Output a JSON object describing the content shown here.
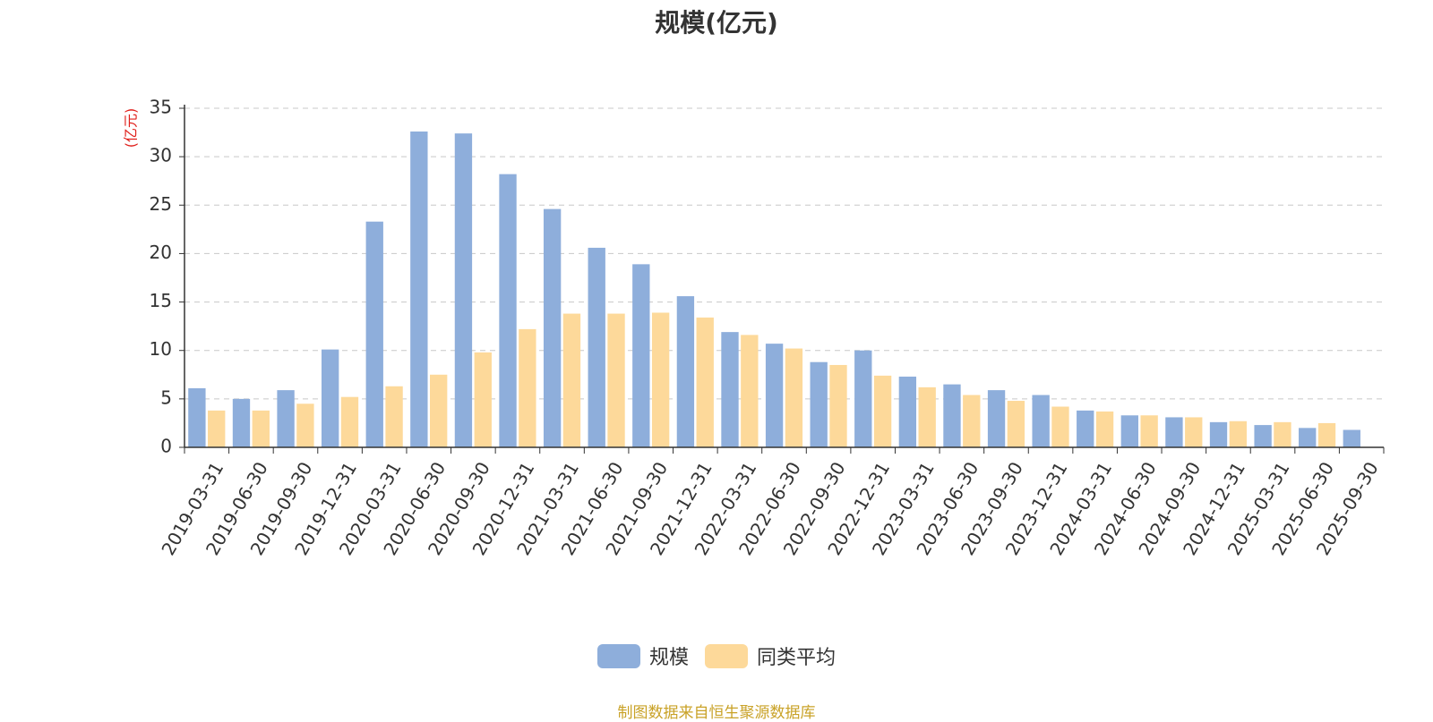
{
  "colors": {
    "series_1": "#8eaedb",
    "series_2": "#fdd99a",
    "y_unit_label": "#e0201b",
    "source_note": "#c9a227"
  },
  "source_note": "制图数据来自恒生聚源数据库",
  "chart_data": {
    "type": "bar",
    "title": "规模(亿元)",
    "ylabel": "(亿元)",
    "xlabel": "",
    "ylim": [
      0,
      35
    ],
    "yticks": [
      0,
      5,
      10,
      15,
      20,
      25,
      30,
      35
    ],
    "grid": true,
    "legend_position": "bottom-center",
    "categories": [
      "2019-03-31",
      "2019-06-30",
      "2019-09-30",
      "2019-12-31",
      "2020-03-31",
      "2020-06-30",
      "2020-09-30",
      "2020-12-31",
      "2021-03-31",
      "2021-06-30",
      "2021-09-30",
      "2021-12-31",
      "2022-03-31",
      "2022-06-30",
      "2022-09-30",
      "2022-12-31",
      "2023-03-31",
      "2023-06-30",
      "2023-09-30",
      "2023-12-31",
      "2024-03-31",
      "2024-06-30",
      "2024-09-30",
      "2024-12-31",
      "2025-03-31",
      "2025-06-30",
      "2025-09-30"
    ],
    "series": [
      {
        "name": "规模",
        "values": [
          6.1,
          5.0,
          5.9,
          10.1,
          23.3,
          32.6,
          32.4,
          28.2,
          24.6,
          20.6,
          18.9,
          15.6,
          11.9,
          10.7,
          8.8,
          10.0,
          7.3,
          6.5,
          5.9,
          5.4,
          3.8,
          3.3,
          3.1,
          2.6,
          2.3,
          2.0,
          1.8
        ]
      },
      {
        "name": "同类平均",
        "values": [
          3.8,
          3.8,
          4.5,
          5.2,
          6.3,
          7.5,
          9.8,
          12.2,
          13.8,
          13.8,
          13.9,
          13.4,
          11.6,
          10.2,
          8.5,
          7.4,
          6.2,
          5.4,
          4.8,
          4.2,
          3.7,
          3.3,
          3.1,
          2.7,
          2.6,
          2.5,
          null
        ]
      }
    ]
  }
}
